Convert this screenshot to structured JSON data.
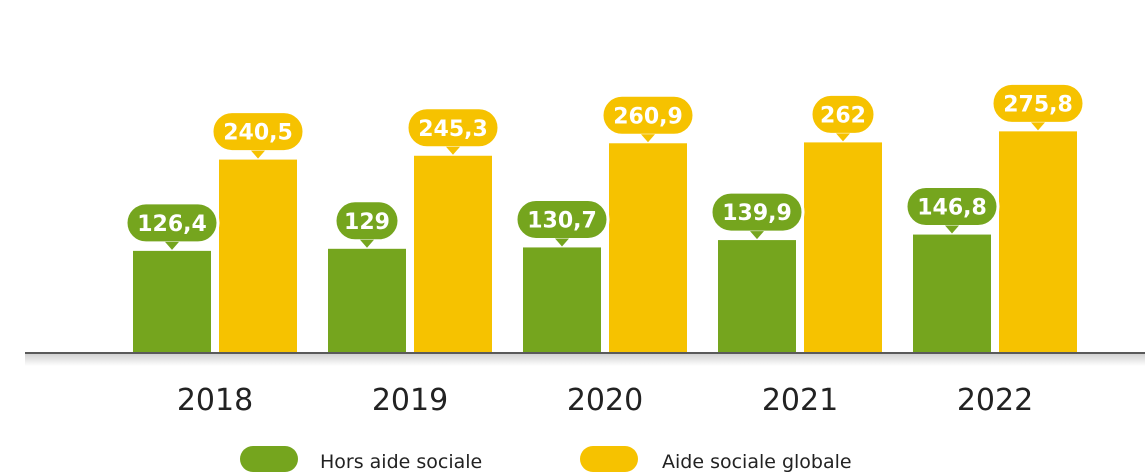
{
  "chart_data": {
    "type": "bar",
    "categories": [
      "2018",
      "2019",
      "2020",
      "2021",
      "2022"
    ],
    "series": [
      {
        "name": "Hors aide sociale",
        "values": [
          126.4,
          129,
          130.7,
          139.9,
          146.8
        ],
        "labels": [
          "126,4",
          "129",
          "130,7",
          "139,9",
          "146,8"
        ],
        "color": "#75A51E"
      },
      {
        "name": "Aide sociale globale",
        "values": [
          240.5,
          245.3,
          260.9,
          262,
          275.8
        ],
        "labels": [
          "240,5",
          "245,3",
          "260,9",
          "262",
          "275,8"
        ],
        "color": "#F6C200"
      }
    ],
    "title": "",
    "xlabel": "",
    "ylabel": "",
    "ylim": [
      0,
      300
    ],
    "grid": false,
    "legend": "bottom"
  }
}
